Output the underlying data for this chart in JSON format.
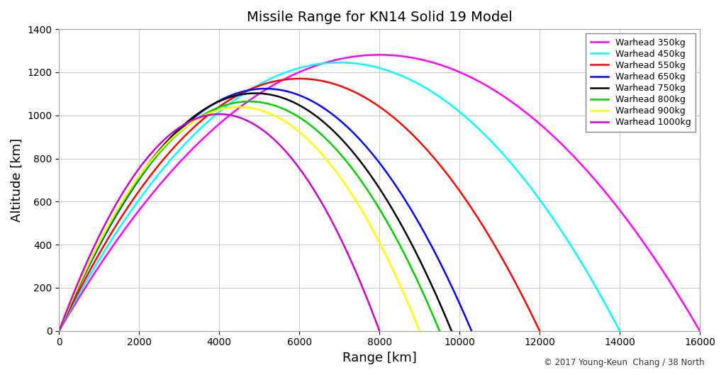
{
  "title": "Missile Range for KN14 Solid 19 Model",
  "xlabel": "Range [km]",
  "ylabel": "Altitude [km]",
  "xlim": [
    0,
    16000
  ],
  "ylim": [
    0,
    1400
  ],
  "xticks": [
    0,
    2000,
    4000,
    6000,
    8000,
    10000,
    12000,
    14000,
    16000
  ],
  "yticks": [
    0,
    200,
    400,
    600,
    800,
    1000,
    1200,
    1400
  ],
  "copyright": "© 2017 Young-Keun  Chang / 38 North",
  "background_color": "#ffffff",
  "trajectories": [
    {
      "label": "Warhead 350kg",
      "color": "#ff00ff",
      "max_range": 16000,
      "peak_alt": 1280,
      "peak_x": 7800
    },
    {
      "label": "Warhead 450kg",
      "color": "#00ffff",
      "max_range": 14000,
      "peak_alt": 1245,
      "peak_x": 7000
    },
    {
      "label": "Warhead 550kg",
      "color": "#ff0000",
      "max_range": 12000,
      "peak_alt": 1165,
      "peak_x": 6400
    },
    {
      "label": "Warhead 650kg",
      "color": "#0000ff",
      "max_range": 10300,
      "peak_alt": 1100,
      "peak_x": 5900
    },
    {
      "label": "Warhead 750kg",
      "color": "#000000",
      "max_range": 9800,
      "peak_alt": 1080,
      "peak_x": 5600
    },
    {
      "label": "Warhead 800kg",
      "color": "#00cc00",
      "max_range": 9500,
      "peak_alt": 1050,
      "peak_x": 5300
    },
    {
      "label": "Warhead 900kg",
      "color": "#ffff00",
      "max_range": 9000,
      "peak_alt": 1020,
      "peak_x": 5100
    },
    {
      "label": "Warhead 1000kg",
      "color": "#cc00cc",
      "max_range": 8000,
      "peak_alt": 975,
      "peak_x": 4700
    }
  ],
  "grid_color": "#c8c8c8",
  "linewidth": 1.8,
  "title_fontsize": 14,
  "axis_label_fontsize": 13,
  "tick_fontsize": 10,
  "legend_fontsize": 9
}
